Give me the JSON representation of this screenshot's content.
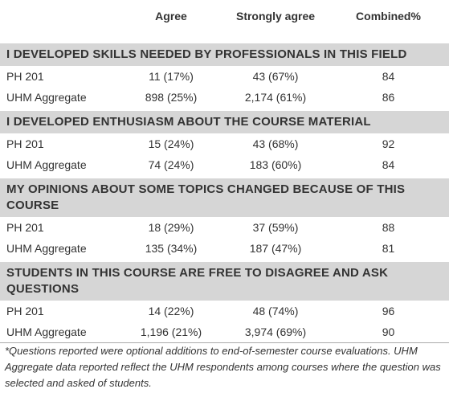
{
  "table": {
    "columns": [
      "Agree",
      "Strongly agree",
      "Combined%"
    ],
    "sections": [
      {
        "title": "I developed skills needed by professionals in this field",
        "rows": [
          [
            "PH 201",
            "11 (17%)",
            "43 (67%)",
            84
          ],
          [
            "UHM Aggregate",
            "898 (25%)",
            "2,174 (61%)",
            86
          ]
        ]
      },
      {
        "title": "I developed enthusiasm about the course material",
        "rows": [
          [
            "PH 201",
            "15 (24%)",
            "43 (68%)",
            92
          ],
          [
            "UHM Aggregate",
            "74 (24%)",
            "183 (60%)",
            84
          ]
        ]
      },
      {
        "title": "My opinions about some topics changed because of this course",
        "rows": [
          [
            "PH 201",
            "18 (29%)",
            "37 (59%)",
            88
          ],
          [
            "UHM Aggregate",
            "135 (34%)",
            "187 (47%)",
            81
          ]
        ]
      },
      {
        "title": "Students in this course are free to disagree and ask questions",
        "rows": [
          [
            "PH 201",
            "14 (22%)",
            "48 (74%)",
            96
          ],
          [
            "UHM Aggregate",
            "1,196 (21%)",
            "3,974 (69%)",
            90
          ]
        ]
      }
    ]
  },
  "footnote": "*Questions reported were optional additions to end-of-semester course evaluations. UHM Aggregate data reported reflect the UHM respondents among courses where the question was selected and asked of students."
}
